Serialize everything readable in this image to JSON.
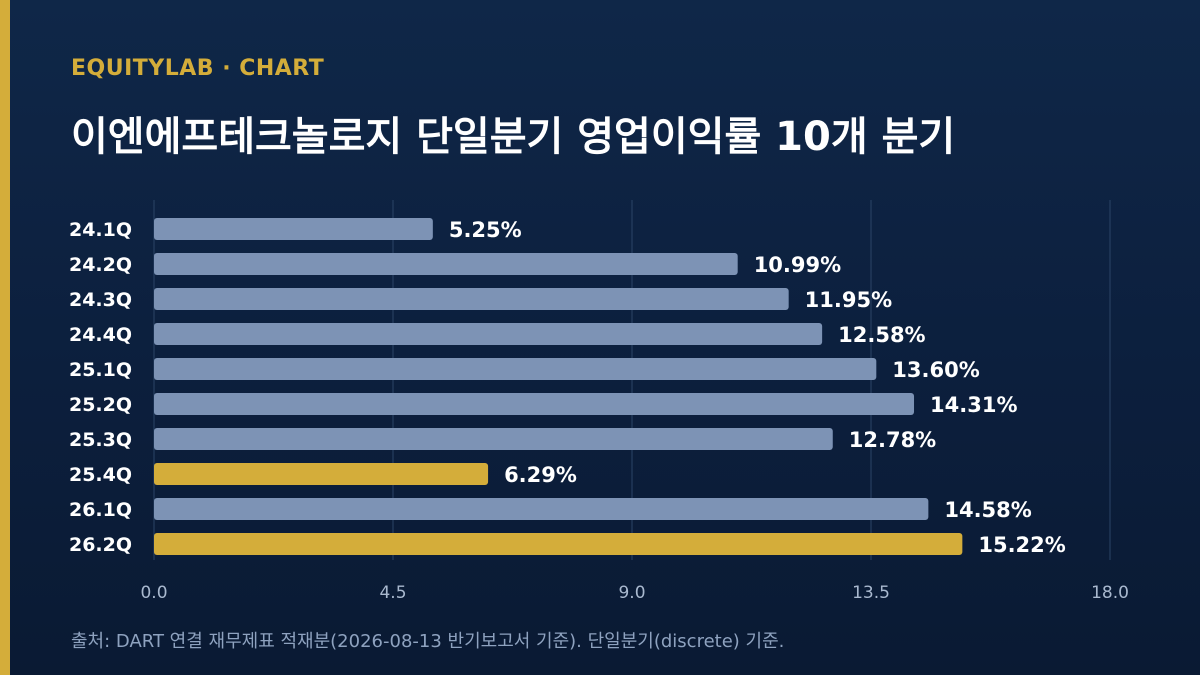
{
  "header": {
    "brand": "EQUITYLAB · CHART",
    "title": "이엔에프테크놀로지 단일분기 영업이익률 10개 분기"
  },
  "footer": {
    "source": "출처: DART 연결 재무제표 적재분(2026-08-13 반기보고서 기준). 단일분기(discrete) 기준."
  },
  "colors": {
    "background": "#0c1f3d",
    "accent": "#d4ad3a",
    "bar_default": "#7d93b5",
    "bar_highlight": "#d4ad3a",
    "grid": "#2b4466",
    "label": "#ffffff",
    "tick": "#a9b9cf"
  },
  "chart_data": {
    "type": "bar",
    "orientation": "horizontal",
    "categories": [
      "24.1Q",
      "24.2Q",
      "24.3Q",
      "24.4Q",
      "25.1Q",
      "25.2Q",
      "25.3Q",
      "25.4Q",
      "26.1Q",
      "26.2Q"
    ],
    "values": [
      5.25,
      10.99,
      11.95,
      12.58,
      13.6,
      14.31,
      12.78,
      6.29,
      14.58,
      15.22
    ],
    "value_labels": [
      "5.25%",
      "10.99%",
      "11.95%",
      "12.58%",
      "13.60%",
      "14.31%",
      "12.78%",
      "6.29%",
      "14.58%",
      "15.22%"
    ],
    "highlighted": [
      "25.4Q",
      "26.2Q"
    ],
    "xlim": [
      0,
      18
    ],
    "xticks": [
      0,
      4.5,
      9,
      13.5,
      18
    ],
    "xtick_labels": [
      "0.0",
      "4.5",
      "9.0",
      "13.5",
      "18.0"
    ],
    "grid": true
  }
}
